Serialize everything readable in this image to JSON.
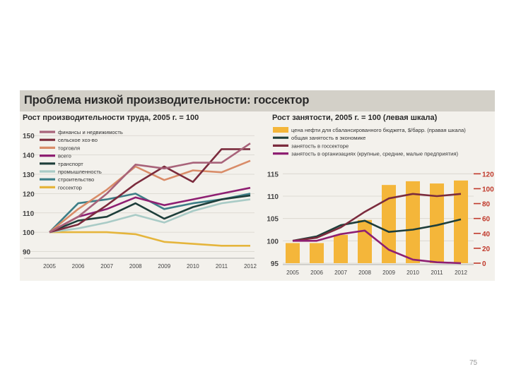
{
  "slide_number": "75",
  "figure_title": "Проблема низкой производительности: госсектор",
  "chart_data": [
    {
      "type": "line",
      "title": "Рост производительности труда, 2005 г. = 100",
      "x": [
        "2005",
        "2006",
        "2007",
        "2008",
        "2009",
        "2010",
        "2011",
        "2012"
      ],
      "yticks": [
        90,
        100,
        110,
        120,
        130,
        140,
        150
      ],
      "ylim": [
        88,
        153
      ],
      "grid": true,
      "legend_placement": "top-left",
      "series": [
        {
          "name": "финансы и недвижимость",
          "color": "#a8637a",
          "values": [
            100,
            108,
            120,
            135,
            133,
            136,
            136,
            146
          ]
        },
        {
          "name": "сельское хоз-во",
          "color": "#7b2b3d",
          "values": [
            100,
            104,
            114,
            125,
            134,
            126,
            143,
            143
          ]
        },
        {
          "name": "торговля",
          "color": "#d98c68",
          "values": [
            100,
            112,
            122,
            134,
            127,
            132,
            131,
            137
          ]
        },
        {
          "name": "всего",
          "color": "#8e1f72",
          "values": [
            100,
            108,
            112,
            118,
            114,
            117,
            120,
            123
          ]
        },
        {
          "name": "транспорт",
          "color": "#1e3e3a",
          "values": [
            100,
            106,
            108,
            115,
            107,
            113,
            117,
            119
          ]
        },
        {
          "name": "промышленность",
          "color": "#a9cbc6",
          "values": [
            100,
            102,
            105,
            109,
            105,
            111,
            115,
            117
          ]
        },
        {
          "name": "строительство",
          "color": "#3d7e87",
          "values": [
            100,
            115,
            117,
            120,
            112,
            115,
            117,
            120
          ]
        },
        {
          "name": "госсектор",
          "color": "#e5b53c",
          "values": [
            100,
            100,
            100,
            99,
            95,
            94,
            93,
            93
          ]
        }
      ]
    },
    {
      "type": "bar+line",
      "title": "Рост занятости, 2005 г. = 100 (левая шкала)",
      "x": [
        "2005",
        "2006",
        "2007",
        "2008",
        "2009",
        "2010",
        "2011",
        "2012"
      ],
      "left_axis": {
        "ylim": [
          95,
          116
        ],
        "ticks": [
          95,
          100,
          105,
          110,
          115
        ]
      },
      "right_axis": {
        "ylim": [
          0,
          126
        ],
        "ticks": [
          0,
          20,
          40,
          60,
          80,
          100,
          120
        ],
        "color": "#c0392b"
      },
      "legend_placement": "top",
      "bars": {
        "name": "цена нефти для сбалансированного бюджета, $/барр. (правая шкала)",
        "color": "#f4b63a",
        "axis": "right",
        "values": [
          27,
          27,
          38,
          58,
          105,
          110,
          107,
          111
        ]
      },
      "series": [
        {
          "name": "общая занятость в экономике",
          "color": "#1e3e3a",
          "axis": "left",
          "values": [
            100,
            101,
            103.5,
            104.5,
            102,
            102.5,
            103.5,
            104.8
          ]
        },
        {
          "name": "занятость в госсекторе",
          "color": "#7b2b3d",
          "axis": "left",
          "values": [
            100,
            100.7,
            103,
            106.5,
            109.5,
            110.5,
            110,
            110.5
          ]
        },
        {
          "name": "занятость в организациях (крупные, средние, малые предприятия)",
          "color": "#8e1f72",
          "axis": "left",
          "values": [
            100,
            100,
            101.5,
            102.3,
            98,
            95.8,
            95.2,
            95
          ]
        }
      ]
    }
  ]
}
